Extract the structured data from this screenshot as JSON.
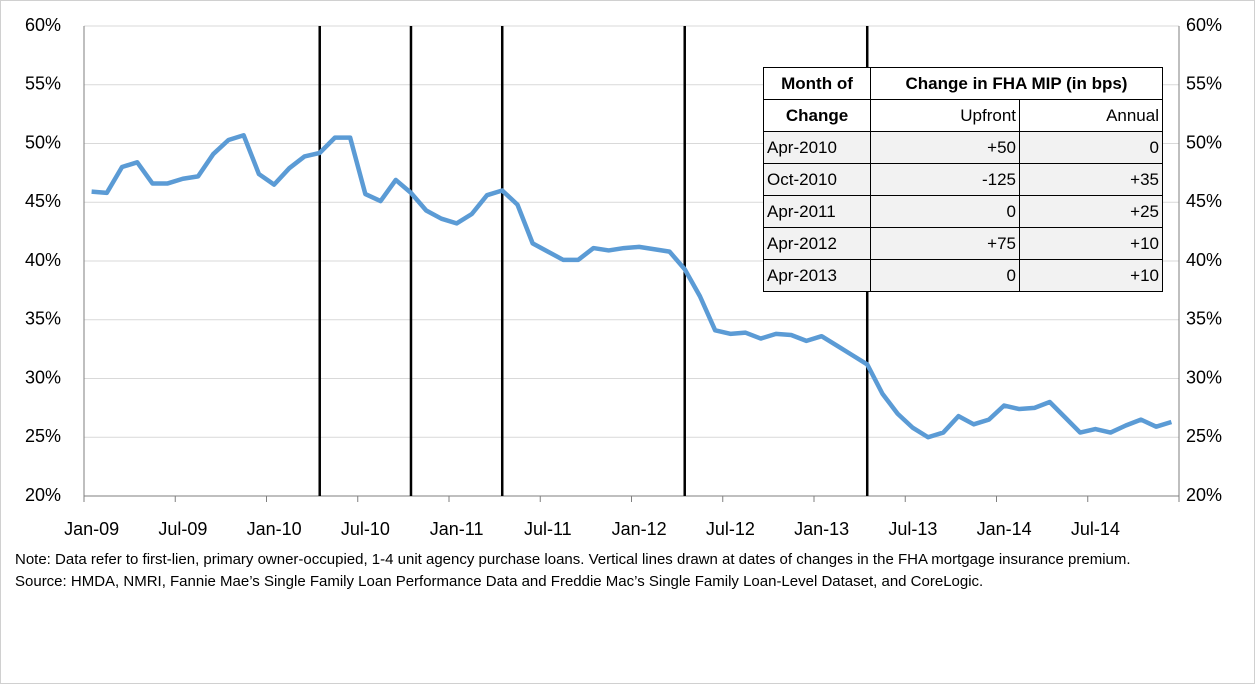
{
  "chart_data": {
    "type": "line",
    "categories": [
      "Jan-09",
      null,
      null,
      null,
      null,
      null,
      "Jul-09",
      null,
      null,
      null,
      null,
      null,
      "Jan-10",
      null,
      null,
      null,
      null,
      null,
      "Jul-10",
      null,
      null,
      null,
      null,
      null,
      "Jan-11",
      null,
      null,
      null,
      null,
      null,
      "Jul-11",
      null,
      null,
      null,
      null,
      null,
      "Jan-12",
      null,
      null,
      null,
      null,
      null,
      "Jul-12",
      null,
      null,
      null,
      null,
      null,
      "Jan-13",
      null,
      null,
      null,
      null,
      null,
      "Jul-13",
      null,
      null,
      null,
      null,
      null,
      "Jan-14",
      null,
      null,
      null,
      null,
      null,
      "Jul-14",
      null,
      null,
      null,
      null,
      null
    ],
    "series": [
      {
        "color": "#5b9bd5",
        "values": [
          45.9,
          45.8,
          48.0,
          48.4,
          46.6,
          46.6,
          47.0,
          47.2,
          49.1,
          50.3,
          50.7,
          47.4,
          46.5,
          47.9,
          48.9,
          49.2,
          50.5,
          50.5,
          45.7,
          45.1,
          46.9,
          45.8,
          44.3,
          43.6,
          43.2,
          44.0,
          45.6,
          46.0,
          44.8,
          41.5,
          40.8,
          40.1,
          40.1,
          41.1,
          40.9,
          41.1,
          41.2,
          41.0,
          40.8,
          39.3,
          37.0,
          34.1,
          33.8,
          33.9,
          33.4,
          33.8,
          33.7,
          33.2,
          33.6,
          32.8,
          32.0,
          31.2,
          28.7,
          27.0,
          25.8,
          25.0,
          25.4,
          26.8,
          26.1,
          26.5,
          27.7,
          27.4,
          27.5,
          28.0,
          26.7,
          25.4,
          25.7,
          25.4,
          26.0,
          26.5,
          25.9,
          26.3
        ]
      }
    ],
    "vlines": [
      15,
      21,
      27,
      39,
      51
    ],
    "ylim": [
      20,
      60
    ],
    "yticks": [
      {
        "value": 20,
        "label": "20%"
      },
      {
        "value": 25,
        "label": "25%"
      },
      {
        "value": 30,
        "label": "30%"
      },
      {
        "value": 35,
        "label": "35%"
      },
      {
        "value": 40,
        "label": "40%"
      },
      {
        "value": 45,
        "label": "45%"
      },
      {
        "value": 50,
        "label": "50%"
      },
      {
        "value": 55,
        "label": "55%"
      },
      {
        "value": 60,
        "label": "60%"
      }
    ],
    "grid": true,
    "table": {
      "header": [
        "Month of",
        "Change in FHA MIP (in bps)"
      ],
      "subheader": [
        "Change",
        "Upfront",
        "Annual"
      ],
      "rows": [
        [
          "Apr-2010",
          "+50",
          "0"
        ],
        [
          "Oct-2010",
          "-125",
          "+35"
        ],
        [
          "Apr-2011",
          "0",
          "+25"
        ],
        [
          "Apr-2012",
          "+75",
          "+10"
        ],
        [
          "Apr-2013",
          "0",
          "+10"
        ]
      ]
    },
    "note": "Note: Data refer to first-lien, primary owner-occupied, 1-4 unit agency purchase loans. Vertical lines drawn at dates of changes in the FHA mortgage insurance premium.",
    "source": "Source: HMDA, NMRI, Fannie Mae’s Single Family Loan Performance Data and Freddie Mac’s Single Family Loan-Level Dataset, and CoreLogic."
  }
}
